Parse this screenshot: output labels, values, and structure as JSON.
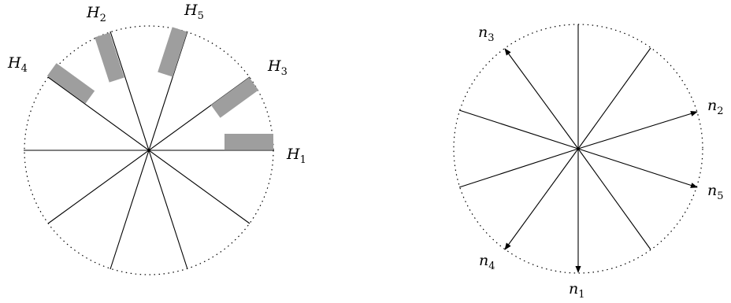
{
  "left_diagram": {
    "labels": [
      {
        "name": "H",
        "sub": "1"
      },
      {
        "name": "H",
        "sub": "2"
      },
      {
        "name": "H",
        "sub": "3"
      },
      {
        "name": "H",
        "sub": "4"
      },
      {
        "name": "H",
        "sub": "5"
      }
    ],
    "bar_color": "#9e9e9e"
  },
  "right_diagram": {
    "labels": [
      {
        "name": "n",
        "sub": "1"
      },
      {
        "name": "n",
        "sub": "2"
      },
      {
        "name": "n",
        "sub": "3"
      },
      {
        "name": "n",
        "sub": "4"
      },
      {
        "name": "n",
        "sub": "5"
      }
    ]
  }
}
